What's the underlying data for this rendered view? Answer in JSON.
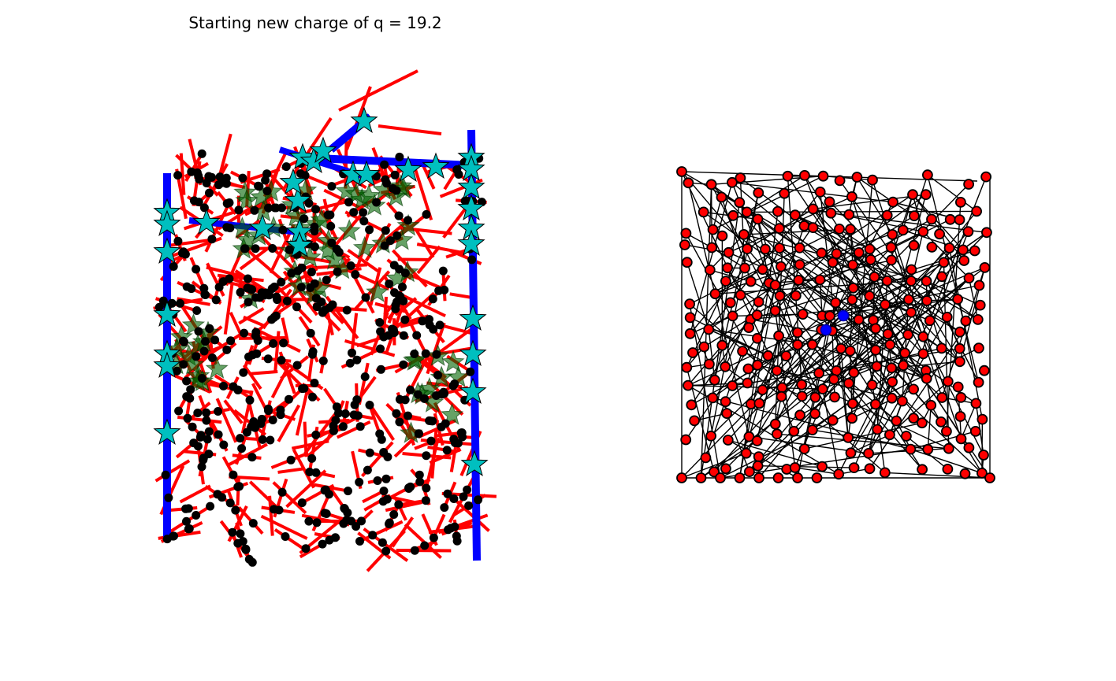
{
  "figure": {
    "title": "Starting new charge of q = 19.2"
  },
  "colors": {
    "conductor_segments": "#ff0000",
    "electrode_bars": "#0000ff",
    "junction_nodes": "#000000",
    "electrode_contacts": "#00bfbf",
    "inactive_contacts": "#006400",
    "graph_nodes": "#ff0000",
    "graph_nodes_highlight": "#0000ff",
    "graph_edges": "#000000",
    "background": "#ffffff"
  },
  "chart_data": [
    {
      "type": "network",
      "title": "Starting new charge of q = 19.2",
      "axes": "off",
      "series": [
        {
          "name": "",
          "kind": "wire-segments",
          "color": "#ff0000",
          "count": 380
        },
        {
          "name": "",
          "kind": "electrode-bars",
          "color": "#0000ff",
          "count": 5
        },
        {
          "name": "",
          "kind": "junction-nodes",
          "color": "#000000",
          "marker": "circle",
          "count": 440
        },
        {
          "name": "",
          "kind": "electrode-contacts",
          "color": "#00bfbf",
          "marker": "star",
          "count": 40
        },
        {
          "name": "",
          "kind": "inactive-contacts",
          "color": "#006400",
          "marker": "star",
          "alpha": 0.6,
          "count": 70
        }
      ]
    },
    {
      "type": "network",
      "title": "",
      "axes": "off",
      "series": [
        {
          "name": "",
          "kind": "graph-nodes",
          "color": "#ff0000",
          "marker": "circle",
          "count": 260
        },
        {
          "name": "",
          "kind": "graph-nodes-highlight",
          "color": "#0000ff",
          "marker": "circle",
          "count": 2
        },
        {
          "name": "",
          "kind": "graph-edges",
          "color": "#000000",
          "count": 420
        }
      ]
    }
  ]
}
